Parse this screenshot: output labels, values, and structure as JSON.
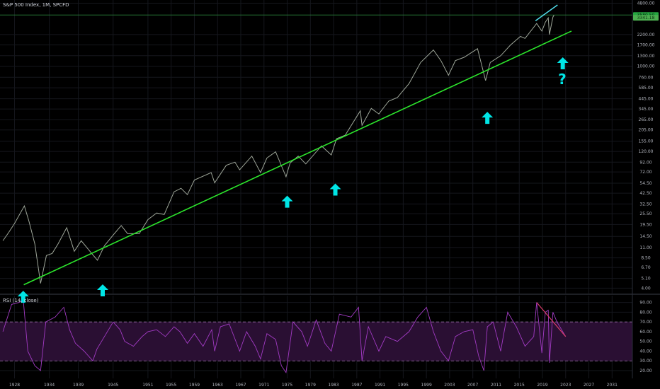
{
  "chart_data": [
    {
      "type": "line",
      "title": "S&P 500 Index, 1M, SPCFD",
      "y_scale": "log",
      "ylim": [
        3.5,
        5200
      ],
      "xlim": [
        1925.5,
        2034.5
      ],
      "y_ticks": [
        4.0,
        5.1,
        6.7,
        8.5,
        11.0,
        14.5,
        19.5,
        25.5,
        32.5,
        42.5,
        54.5,
        72.0,
        92.0,
        120.0,
        155.0,
        205.0,
        265.0,
        345.0,
        445.0,
        585.0,
        760.0,
        1000.0,
        1300.0,
        1700.0,
        2200.0,
        4800.0
      ],
      "x_ticks": [
        "1928",
        "1934",
        "1939",
        "1945",
        "1951",
        "1955",
        "1959",
        "1963",
        "1967",
        "1971",
        "1975",
        "1979",
        "1983",
        "1987",
        "1991",
        "1995",
        "1999",
        "2003",
        "2007",
        "2011",
        "2015",
        "2019",
        "2023",
        "2027",
        "2031"
      ],
      "price_labels": [
        "3580.50",
        "3341.18"
      ],
      "series": [
        {
          "x": [
            1926.0,
            1927.0,
            1928.0,
            1929.7,
            1930.5,
            1931.5,
            1932.5,
            1933.5,
            1934.5,
            1935.5,
            1937.0,
            1938.3,
            1939.5,
            1941.0,
            1942.3,
            1943.5,
            1945.0,
            1946.4,
            1947.5,
            1949.5,
            1951.0,
            1952.5,
            1953.8,
            1955.5,
            1956.7,
            1957.8,
            1959.0,
            1961.9,
            1962.5,
            1964.5,
            1966.0,
            1966.8,
            1968.9,
            1970.4,
            1971.5,
            1973.0,
            1974.8,
            1975.5,
            1976.9,
            1978.2,
            1980.9,
            1982.6,
            1983.5,
            1985.0,
            1987.6,
            1987.9,
            1989.5,
            1990.8,
            1992.5,
            1994.0,
            1996.0,
            1998.0,
            2000.2,
            2001.5,
            2002.8,
            2004.0,
            2005.5,
            2007.8,
            2009.2,
            2010.0,
            2011.8,
            2013.5,
            2015.2,
            2016.0,
            2018.0,
            2018.9,
            2019.5,
            2020.0,
            2020.2,
            2020.8,
            2021.0
          ],
          "y": [
            13,
            16,
            20,
            31,
            21,
            12,
            4.5,
            9,
            9.5,
            12,
            18,
            10,
            13,
            10,
            8,
            11.5,
            15,
            19,
            15.5,
            15.5,
            22,
            26,
            25,
            44,
            48,
            41,
            59,
            71,
            55,
            85,
            92,
            76,
            107,
            71,
            102,
            119,
            64,
            90,
            107,
            88,
            138,
            110,
            165,
            180,
            330,
            230,
            350,
            305,
            420,
            460,
            650,
            1100,
            1500,
            1150,
            800,
            1150,
            1250,
            1550,
            700,
            1100,
            1300,
            1700,
            2100,
            2000,
            2900,
            2400,
            3000,
            3340,
            2200,
            3400,
            3580
          ]
        },
        {
          "name": "trendline",
          "x": [
            1929.6,
            2024.0
          ],
          "y": [
            4.35,
            2400
          ]
        },
        {
          "name": "resistance",
          "x": [
            2017.8,
            2021.6
          ],
          "y": [
            3100,
            4600
          ]
        }
      ],
      "annotations": [
        {
          "type": "arrow-up",
          "x": 1929.5,
          "y": 3.75
        },
        {
          "type": "arrow-up",
          "x": 1943.2,
          "y": 4.4
        },
        {
          "type": "arrow-up",
          "x": 1975.0,
          "y": 40
        },
        {
          "type": "arrow-up",
          "x": 1983.3,
          "y": 54
        },
        {
          "type": "arrow-up",
          "x": 2009.5,
          "y": 322
        },
        {
          "type": "arrow-up",
          "x": 2022.5,
          "y": 1250
        },
        {
          "type": "text",
          "text": "?",
          "x": 2022.4,
          "y": 640
        }
      ]
    },
    {
      "type": "line",
      "title": "RSI (14, close)",
      "ylim": [
        12,
        97
      ],
      "xlim": [
        1925.5,
        2034.5
      ],
      "y_ticks": [
        90.0,
        80.0,
        70.0,
        60.0,
        50.0,
        40.0,
        30.0,
        20.0
      ],
      "upper_band": 70,
      "lower_band": 30,
      "series": [
        {
          "x": [
            1926.0,
            1927.5,
            1928.8,
            1929.5,
            1930.3,
            1931.5,
            1932.5,
            1933.4,
            1935.0,
            1936.5,
            1937.5,
            1938.5,
            1940.0,
            1941.5,
            1942.2,
            1943.5,
            1945.0,
            1946.2,
            1947.0,
            1948.5,
            1950.0,
            1951.0,
            1952.5,
            1954.0,
            1955.5,
            1956.5,
            1957.8,
            1959.0,
            1960.5,
            1962.0,
            1962.5,
            1963.5,
            1965.0,
            1966.8,
            1968.0,
            1969.5,
            1970.4,
            1971.5,
            1973.0,
            1974.0,
            1974.8,
            1976.0,
            1977.5,
            1978.5,
            1980.0,
            1981.5,
            1982.6,
            1984.0,
            1986.0,
            1987.3,
            1987.9,
            1989.0,
            1990.8,
            1992.0,
            1994.0,
            1996.0,
            1997.5,
            1999.0,
            2000.2,
            2001.5,
            2002.8,
            2004.0,
            2005.5,
            2007.0,
            2008.0,
            2008.9,
            2009.5,
            2010.5,
            2011.8,
            2013.0,
            2014.5,
            2016.0,
            2017.5,
            2018.0,
            2018.9,
            2019.5,
            2020.0,
            2020.2,
            2020.8,
            2021.5,
            2023.0
          ],
          "y": [
            60,
            88,
            90,
            93,
            40,
            25,
            20,
            70,
            75,
            85,
            62,
            48,
            40,
            30,
            42,
            55,
            70,
            62,
            50,
            45,
            55,
            60,
            62,
            55,
            65,
            60,
            48,
            58,
            45,
            62,
            40,
            65,
            68,
            40,
            60,
            45,
            32,
            58,
            52,
            25,
            18,
            70,
            60,
            45,
            72,
            48,
            40,
            78,
            75,
            85,
            30,
            65,
            40,
            55,
            50,
            60,
            75,
            85,
            60,
            40,
            30,
            55,
            60,
            62,
            35,
            20,
            65,
            70,
            40,
            80,
            65,
            45,
            55,
            90,
            38,
            80,
            82,
            28,
            80,
            70,
            55
          ]
        }
      ]
    }
  ]
}
